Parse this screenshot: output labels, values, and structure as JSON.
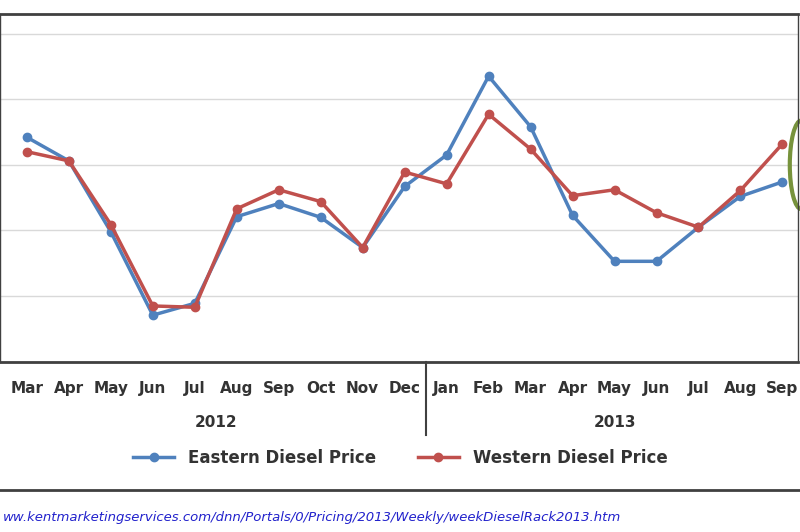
{
  "chart_data": {
    "type": "line",
    "categories": [
      "Mar",
      "Apr",
      "May",
      "Jun",
      "Jul",
      "Aug",
      "Sep",
      "Oct",
      "Nov",
      "Dec",
      "Jan",
      "Feb",
      "Mar",
      "Apr",
      "May",
      "Jun",
      "Jul",
      "Aug",
      "Sep"
    ],
    "x_groups": [
      {
        "label": "2012",
        "count": 10
      },
      {
        "label": "2013",
        "count": 9
      }
    ],
    "series": [
      {
        "name": "Eastern Diesel Price",
        "color": "#4f81bd",
        "marker": "circle",
        "line_style": "solid",
        "values": [
          3.42,
          3.06,
          1.98,
          0.71,
          0.89,
          2.21,
          2.41,
          2.2,
          1.74,
          2.67,
          3.15,
          4.35,
          3.58,
          2.23,
          1.53,
          1.53,
          2.05,
          2.52,
          2.74
        ]
      },
      {
        "name": "Western Diesel Price",
        "color": "#c0504d",
        "marker": "circle",
        "line_style": "solid",
        "values": [
          3.2,
          3.06,
          2.09,
          0.85,
          0.83,
          2.33,
          2.62,
          2.44,
          1.74,
          2.89,
          2.71,
          3.77,
          3.24,
          2.53,
          2.62,
          2.27,
          2.05,
          2.61,
          3.32
        ]
      }
    ],
    "ylim": [
      0,
      5.3
    ],
    "yticks": [
      0,
      1,
      2,
      3,
      4,
      5
    ],
    "tick_labels": "x",
    "grid": true,
    "legend": "lower center",
    "source": "ww.kentmarketingservices.com/dnn/Portals/0/Pricing/2013/Weekly/weekDieselRack2013.htm"
  }
}
